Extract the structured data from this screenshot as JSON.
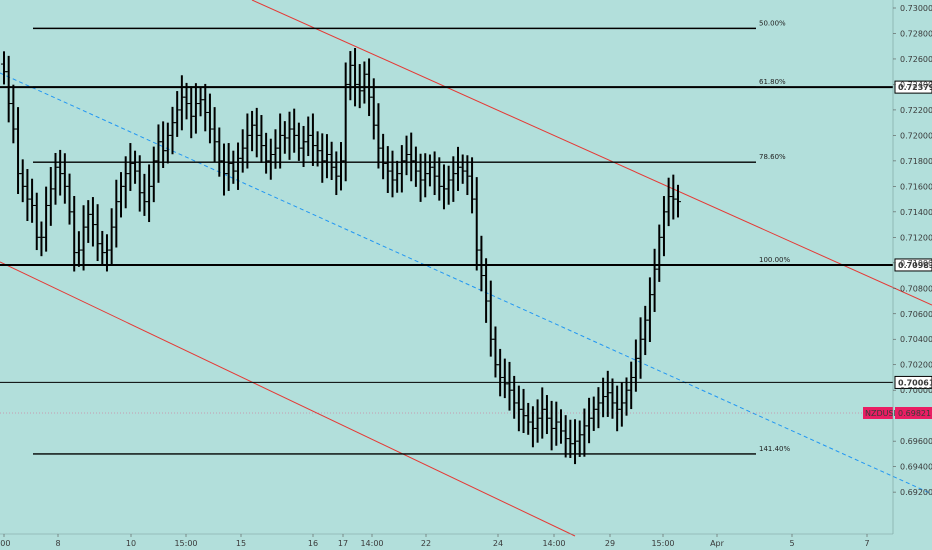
{
  "chart_data": {
    "type": "ohlc",
    "symbol": "NZDUSD",
    "colors": {
      "background": "#b2dfdb",
      "bars": "#000000",
      "channel": "#e53935",
      "midline": "#2196f3",
      "price_tag": "#e91e63"
    },
    "y_axis": {
      "range": [
        0.691,
        0.731
      ],
      "ticks": [
        "0.73000",
        "0.72800",
        "0.72600",
        "0.72400",
        "0.72200",
        "0.72000",
        "0.71800",
        "0.71600",
        "0.71400",
        "0.71200",
        "0.71000",
        "0.70800",
        "0.70600",
        "0.70400",
        "0.70200",
        "0.70000",
        "0.69600",
        "0.69400",
        "0.69200"
      ]
    },
    "x_axis": {
      "ticks": [
        ":00",
        "8",
        "10",
        "15:00",
        "15",
        "16",
        "17",
        "14:00",
        "22",
        "24",
        "14:00",
        "29",
        "15:00",
        "Apr",
        "5",
        "7"
      ]
    },
    "price_tags": [
      {
        "label": "0.72379",
        "value": 0.72379
      },
      {
        "label": "0.70983",
        "value": 0.70983
      },
      {
        "label": "0.70061",
        "value": 0.70061
      }
    ],
    "current_price": {
      "symbol": "NZDUSD",
      "label": "0.69821",
      "value": 0.69821
    },
    "fib_levels": [
      {
        "label": "50.00%",
        "value": 0.7284
      },
      {
        "label": "61.80%",
        "value": 0.72379
      },
      {
        "label": "78.60%",
        "value": 0.7179
      },
      {
        "label": "100.00%",
        "value": 0.70983
      },
      {
        "label": "141.40%",
        "value": 0.695
      }
    ],
    "horizontal_levels": [
      0.72379,
      0.70983,
      0.70061
    ],
    "closes": [
      0.725,
      0.7225,
      0.7205,
      0.717,
      0.716,
      0.715,
      0.7145,
      0.712,
      0.712,
      0.7145,
      0.7158,
      0.7175,
      0.717,
      0.716,
      0.714,
      0.7108,
      0.711,
      0.7128,
      0.7138,
      0.713,
      0.7115,
      0.7108,
      0.711,
      0.7128,
      0.7148,
      0.716,
      0.717,
      0.7178,
      0.7172,
      0.7155,
      0.7148,
      0.716,
      0.718,
      0.7195,
      0.7188,
      0.72,
      0.721,
      0.722,
      0.723,
      0.7225,
      0.7215,
      0.7225,
      0.7228,
      0.7218,
      0.7205,
      0.7195,
      0.718,
      0.717,
      0.7178,
      0.7172,
      0.7182,
      0.719,
      0.72,
      0.7208,
      0.72,
      0.7192,
      0.718,
      0.7185,
      0.719,
      0.72,
      0.7198,
      0.7205,
      0.72,
      0.719,
      0.7195,
      0.72,
      0.7192,
      0.7188,
      0.718,
      0.7185,
      0.7175,
      0.7168,
      0.718,
      0.724,
      0.7255,
      0.724,
      0.7235,
      0.7248,
      0.723,
      0.7208,
      0.719,
      0.7178,
      0.7172,
      0.7165,
      0.717,
      0.718,
      0.7185,
      0.718,
      0.7172,
      0.7165,
      0.717,
      0.7175,
      0.7168,
      0.716,
      0.7158,
      0.7165,
      0.717,
      0.7175,
      0.7172,
      0.7168,
      0.715,
      0.711,
      0.709,
      0.707,
      0.704,
      0.702,
      0.701,
      0.7005,
      0.7,
      0.699,
      0.6985,
      0.698,
      0.6975,
      0.697,
      0.6978,
      0.6985,
      0.6978,
      0.697,
      0.6975,
      0.6968,
      0.6962,
      0.6958,
      0.696,
      0.6965,
      0.6972,
      0.6978,
      0.6985,
      0.699,
      0.6995,
      0.6998,
      0.699,
      0.6985,
      0.699,
      0.7,
      0.701,
      0.7025,
      0.704,
      0.7055,
      0.7075,
      0.7095,
      0.712,
      0.714,
      0.7152,
      0.715,
      0.7148
    ]
  }
}
